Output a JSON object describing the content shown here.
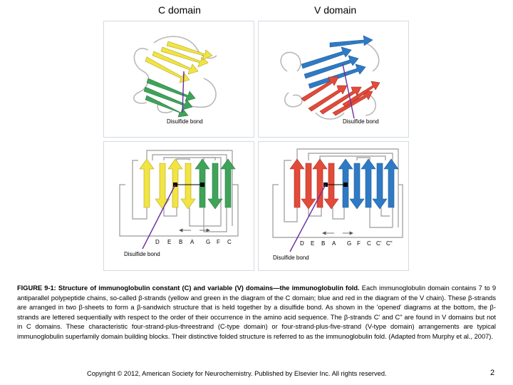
{
  "figure": {
    "c_domain_title": "C domain",
    "v_domain_title": "V domain",
    "disulfide_label": "Disulfide bond",
    "c_strand_letters": [
      "D",
      "E",
      "B",
      "A",
      "G",
      "F",
      "C"
    ],
    "v_strand_letters": [
      "D",
      "E",
      "B",
      "A",
      "G",
      "F",
      "C",
      "C'",
      "C\""
    ],
    "colors": {
      "yellow": "#f1e443",
      "green": "#3fa35a",
      "blue": "#2f7ac4",
      "red": "#e24b3a",
      "purple": "#6a2fa0"
    }
  },
  "caption": {
    "bold": "FIGURE 9-1: Structure of immunoglobulin constant (C) and variable (V) domains—the immunoglobulin fold.",
    "text": " Each immunoglobulin domain contains 7 to 9 antiparallel polypeptide chains, so-called β-strands (yellow and green in the diagram of the C domain; blue and red in the diagram of the V chain). These β-strands are arranged in two β-sheets to form a β-sandwich structure that is held together by a disulfide bond. As shown in the 'opened' diagrams at the bottom, the β-strands are lettered sequentially with respect to the order of their occurrence in the amino acid sequence. The β-strands C' and C\" are found in V domains but not in C domains. These characteristic four-strand-plus-threestrand (C-type domain) or four-strand-plus-five-strand (V-type domain) arrangements are typical immunoglobulin superfamily domain building blocks. Their distinctive folded structure is referred to as the immunoglobulin fold. (Adapted from Murphy et al., 2007)."
  },
  "footer": {
    "copyright": "Copyright © 2012, American Society for Neurochemistry. Published by Elsevier Inc. All rights reserved.",
    "page_number": "2"
  }
}
